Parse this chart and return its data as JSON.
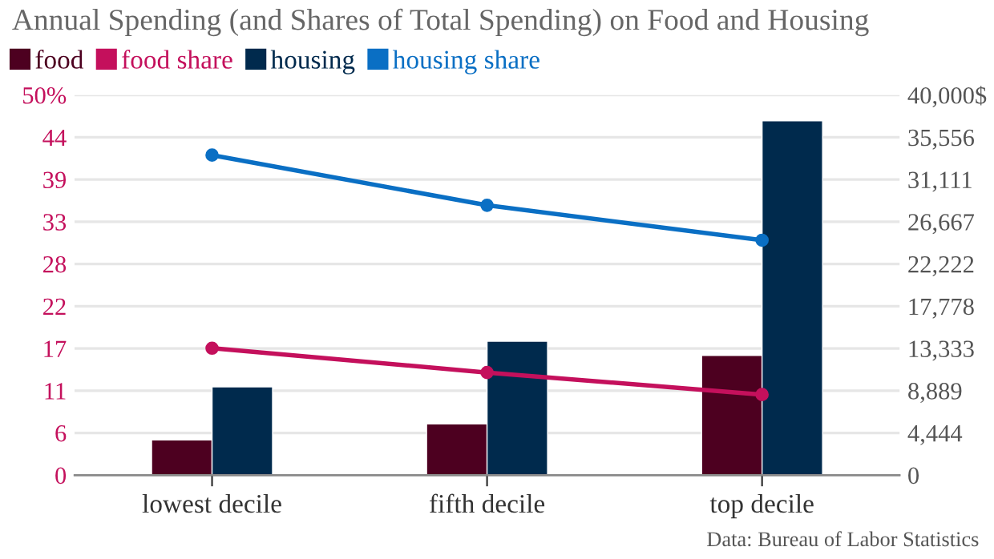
{
  "chart_data": {
    "type": "bar",
    "title": "Annual Spending (and Shares of Total Spending) on Food and Housing",
    "categories": [
      "lowest decile",
      "fifth decile",
      "top decile"
    ],
    "series": [
      {
        "name": "food",
        "axis": "y2",
        "color": "#4d0020",
        "values": [
          3700,
          5400,
          12600
        ]
      },
      {
        "name": "food share",
        "type": "line",
        "axis": "y",
        "color": "#c4105c",
        "values": [
          16.7,
          13.5,
          10.6
        ]
      },
      {
        "name": "housing",
        "axis": "y2",
        "color": "#002a4d",
        "values": [
          9300,
          14100,
          37300
        ]
      },
      {
        "name": "housing share",
        "type": "line",
        "axis": "y",
        "color": "#0a6fc4",
        "values": [
          42.1,
          35.5,
          30.9
        ]
      }
    ],
    "ylim": [
      0,
      50
    ],
    "yticks": [
      0,
      {
        "value": 5.556,
        "label": "6"
      },
      {
        "value": 11.111,
        "label": "11"
      },
      {
        "value": 16.667,
        "label": "17"
      },
      {
        "value": 22.222,
        "label": "22"
      },
      {
        "value": 27.778,
        "label": "28"
      },
      {
        "value": 33.333,
        "label": "33"
      },
      {
        "value": 38.889,
        "label": "39"
      },
      {
        "value": 44.444,
        "label": "44"
      },
      {
        "value": 50,
        "label": "50%"
      }
    ],
    "y2lim": [
      0,
      40000
    ],
    "y2ticks": [
      0,
      {
        "value": 4444.4,
        "label": "4,444"
      },
      {
        "value": 8888.9,
        "label": "8,889"
      },
      {
        "value": 13333.3,
        "label": "13,333"
      },
      {
        "value": 17777.8,
        "label": "17,778"
      },
      {
        "value": 22222.2,
        "label": "22,222"
      },
      {
        "value": 26666.7,
        "label": "26,667"
      },
      {
        "value": 31111.1,
        "label": "31,111"
      },
      {
        "value": 35555.6,
        "label": "35,556"
      },
      {
        "value": 40000,
        "label": "40,000$"
      }
    ],
    "grid": "y",
    "legend": "top left",
    "marker": "circle",
    "annotations": [
      "Data: Bureau of Labor Statistics"
    ]
  }
}
